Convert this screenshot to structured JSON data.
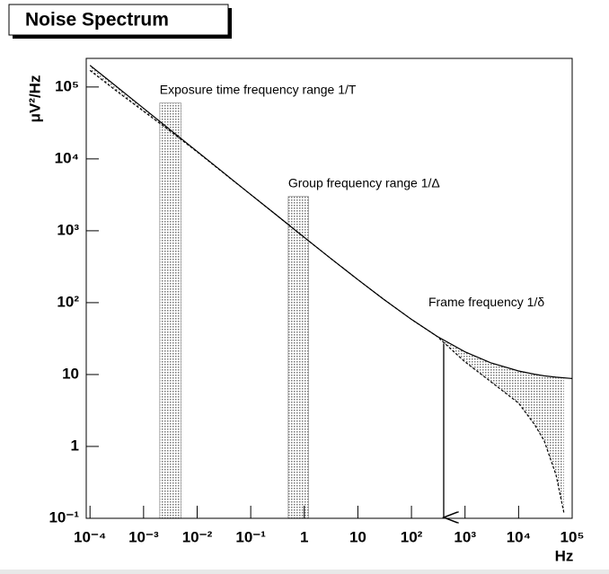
{
  "chart_data": {
    "type": "line",
    "title": "Noise Spectrum",
    "ylabel": "μV²/Hz",
    "xlabel": "Hz",
    "log_x": true,
    "log_y": true,
    "xlim": [
      8.5e-05,
      100000
    ],
    "ylim": [
      0.1,
      250000
    ],
    "xticks": [
      {
        "value": 0.0001,
        "label": "10⁻⁴"
      },
      {
        "value": 0.001,
        "label": "10⁻³"
      },
      {
        "value": 0.01,
        "label": "10⁻²"
      },
      {
        "value": 0.1,
        "label": "10⁻¹"
      },
      1,
      10,
      {
        "value": 100,
        "label": "10²"
      },
      {
        "value": 1000,
        "label": "10³"
      },
      {
        "value": 10000,
        "label": "10⁴"
      },
      {
        "value": 100000,
        "label": "10⁵"
      }
    ],
    "yticks": [
      {
        "value": 0.1,
        "label": "10⁻¹"
      },
      1,
      10,
      {
        "value": 100,
        "label": "10²"
      },
      {
        "value": 1000,
        "label": "10³"
      },
      {
        "value": 10000,
        "label": "10⁴"
      },
      {
        "value": 100000,
        "label": "10⁵"
      }
    ],
    "x": [
      0.0001,
      0.0003,
      0.001,
      0.003,
      0.01,
      0.03,
      0.1,
      0.3,
      1,
      3,
      10,
      30,
      100,
      300,
      1000,
      3000,
      10000,
      20000,
      30000,
      50000,
      70000,
      100000
    ],
    "series": [
      {
        "color": "#000000",
        "dash": false,
        "values": [
          200000,
          104000,
          50500,
          26100,
          12700,
          6570,
          3190,
          1660,
          808,
          421,
          209,
          112,
          58.5,
          34,
          20.7,
          14.6,
          11.2,
          10.1,
          9.6,
          9.2,
          9.0,
          8.8
        ]
      },
      {
        "color": "#000000",
        "dash": true,
        "values": [
          170000,
          90000,
          46000,
          25000,
          12500,
          6500,
          3190,
          1660,
          808,
          421,
          209,
          112,
          58.5,
          34,
          15,
          8,
          4,
          2,
          1.2,
          0.4,
          0.12,
          null
        ]
      }
    ],
    "fill_between": true,
    "bands": [
      {
        "x": [
          0.002,
          0.005
        ],
        "top": 60000,
        "label": "Exposure time frequency range 1/T"
      },
      {
        "x": [
          0.5,
          1.2
        ],
        "top": 3000,
        "label": "Group frequency range  1/Δ"
      }
    ],
    "arrow": {
      "x": 400,
      "from": 27,
      "label": "Frame frequency 1/δ"
    }
  }
}
